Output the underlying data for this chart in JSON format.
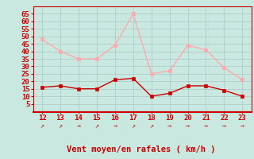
{
  "x": [
    12,
    13,
    14,
    15,
    16,
    17,
    18,
    19,
    20,
    21,
    22,
    23
  ],
  "wind_avg": [
    16,
    17,
    15,
    15,
    21,
    22,
    10,
    12,
    17,
    17,
    14,
    10
  ],
  "wind_gust": [
    48,
    40,
    35,
    35,
    44,
    65,
    25,
    27,
    44,
    41,
    29,
    21
  ],
  "avg_color": "#cc0000",
  "gust_color": "#ffaaaa",
  "bg_color": "#c8e8e0",
  "grid_color": "#b0cccc",
  "tick_color": "#cc0000",
  "xlabel": "Vent moyen/en rafales ( km/h )",
  "ylim": [
    0,
    70
  ],
  "yticks": [
    5,
    10,
    15,
    20,
    25,
    30,
    35,
    40,
    45,
    50,
    55,
    60,
    65
  ],
  "wind_arrows": [
    "↗",
    "↗",
    "→",
    "↗",
    "→",
    "↗",
    "↗",
    "→",
    "→",
    "→",
    "→",
    "→"
  ]
}
